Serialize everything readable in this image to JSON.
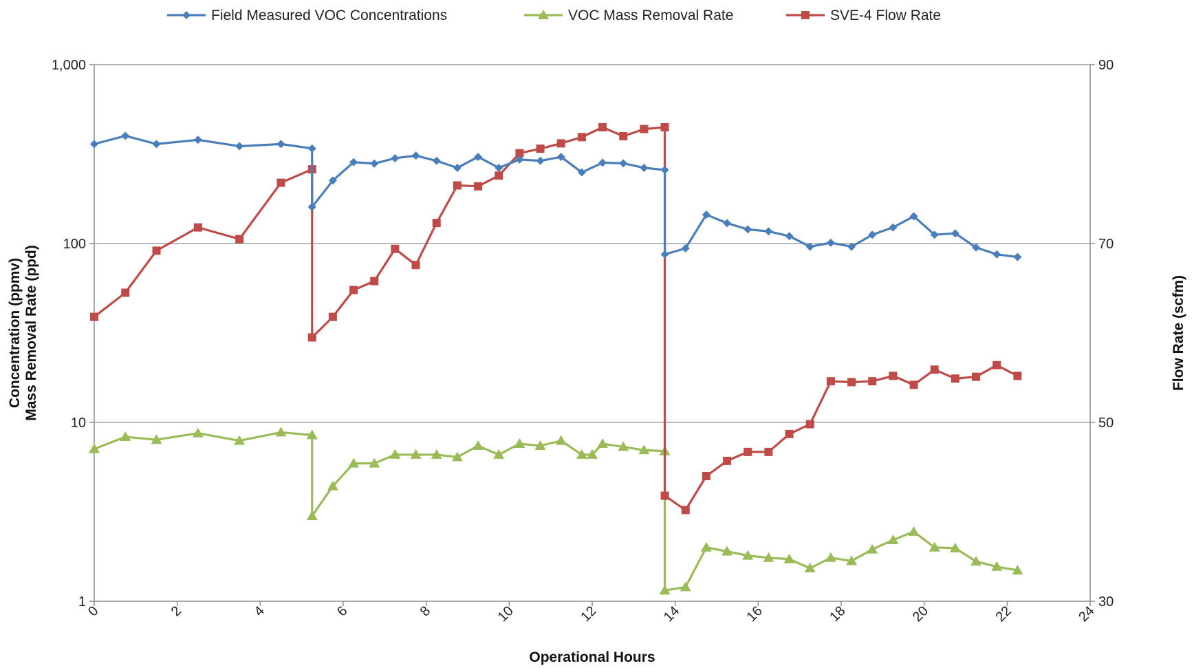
{
  "chart_data": {
    "type": "line",
    "xlabel": "Operational  Hours",
    "ylabel_left": [
      "Concentration (ppmv)",
      "Mass Removal Rate (ppd)"
    ],
    "ylabel_right": "Flow Rate (scfm)",
    "xlim": [
      0,
      24
    ],
    "x_ticks": [
      "0",
      "2",
      "4",
      "6",
      "8",
      "10",
      "12",
      "14",
      "16",
      "18",
      "20",
      "22",
      "24"
    ],
    "y_left_scale": "log",
    "y_left_lim": [
      1,
      1000
    ],
    "y_left_ticks": [
      "1",
      "10",
      "100",
      "1,000"
    ],
    "y_right_lim": [
      30,
      90
    ],
    "y_right_ticks": [
      "30",
      "50",
      "70",
      "90"
    ],
    "grid": "horizontal major gridlines",
    "legend_position": "top",
    "series": [
      {
        "name": "Field Measured VOC Concentrations",
        "axis": "left",
        "marker": "diamond",
        "color": "#4a7ebb",
        "x": [
          0,
          0.75,
          1.5,
          2.5,
          3.5,
          4.5,
          5.25,
          5.25,
          5.75,
          6.25,
          6.75,
          7.25,
          7.75,
          8.25,
          8.75,
          9.25,
          9.75,
          10.25,
          10.75,
          11.25,
          11.75,
          12.25,
          12.75,
          13.25,
          13.75,
          13.75,
          14.25,
          14.75,
          15.25,
          15.75,
          16.25,
          16.75,
          17.25,
          17.75,
          18.25,
          18.75,
          19.25,
          19.75,
          20.25,
          20.75,
          21.25,
          21.75,
          22.25
        ],
        "y": [
          360,
          400,
          360,
          380,
          350,
          360,
          340,
          160,
          225,
          285,
          280,
          300,
          310,
          290,
          265,
          305,
          265,
          295,
          290,
          305,
          250,
          283,
          281,
          265,
          258,
          87,
          94,
          145,
          130,
          120,
          117,
          110,
          96,
          101,
          96,
          112,
          123,
          142,
          112,
          114,
          95,
          87,
          84
        ]
      },
      {
        "name": "VOC Mass Removal Rate",
        "axis": "left",
        "marker": "triangle",
        "color": "#9bbb59",
        "x": [
          0,
          0.75,
          1.5,
          2.5,
          3.5,
          4.5,
          5.25,
          5.25,
          5.75,
          6.25,
          6.75,
          7.25,
          7.75,
          8.25,
          8.75,
          9.25,
          9.75,
          10.25,
          10.75,
          11.25,
          11.75,
          12.0,
          12.25,
          12.75,
          13.25,
          13.75,
          13.75,
          14.25,
          14.75,
          15.25,
          15.75,
          16.25,
          16.75,
          17.25,
          17.75,
          18.25,
          18.75,
          19.25,
          19.75,
          20.25,
          20.75,
          21.25,
          21.75,
          22.25
        ],
        "y": [
          7.1,
          8.3,
          8.0,
          8.7,
          7.9,
          8.8,
          8.5,
          3.0,
          4.4,
          5.9,
          5.9,
          6.6,
          6.6,
          6.6,
          6.4,
          7.4,
          6.6,
          7.6,
          7.4,
          7.9,
          6.6,
          6.6,
          7.6,
          7.3,
          7.0,
          6.9,
          1.15,
          1.2,
          2.0,
          1.9,
          1.8,
          1.75,
          1.72,
          1.53,
          1.75,
          1.68,
          1.95,
          2.2,
          2.45,
          2.0,
          1.98,
          1.67,
          1.56,
          1.49
        ]
      },
      {
        "name": "SVE-4 Flow Rate",
        "axis": "right",
        "marker": "square",
        "color": "#be4b48",
        "x": [
          0,
          0.75,
          1.5,
          2.5,
          3.5,
          4.5,
          5.25,
          5.25,
          5.75,
          6.25,
          6.75,
          7.25,
          7.75,
          8.25,
          8.75,
          9.25,
          9.75,
          10.25,
          10.75,
          11.25,
          11.75,
          12.25,
          12.75,
          13.25,
          13.75,
          13.75,
          14.25,
          14.75,
          15.25,
          15.75,
          16.25,
          16.75,
          17.25,
          17.75,
          18.25,
          18.75,
          19.25,
          19.75,
          20.25,
          20.75,
          21.25,
          21.75,
          22.25
        ],
        "y": [
          61.8,
          64.5,
          69.2,
          71.8,
          70.5,
          76.8,
          78.3,
          59.5,
          61.8,
          64.8,
          65.8,
          69.4,
          67.6,
          72.3,
          76.5,
          76.4,
          77.6,
          80.1,
          80.6,
          81.2,
          81.9,
          83.0,
          82.0,
          82.8,
          83.0,
          41.8,
          40.2,
          44.0,
          45.7,
          46.7,
          46.7,
          48.7,
          49.8,
          54.6,
          54.5,
          54.6,
          55.2,
          54.2,
          55.9,
          54.9,
          55.1,
          56.4,
          55.2
        ]
      }
    ]
  }
}
